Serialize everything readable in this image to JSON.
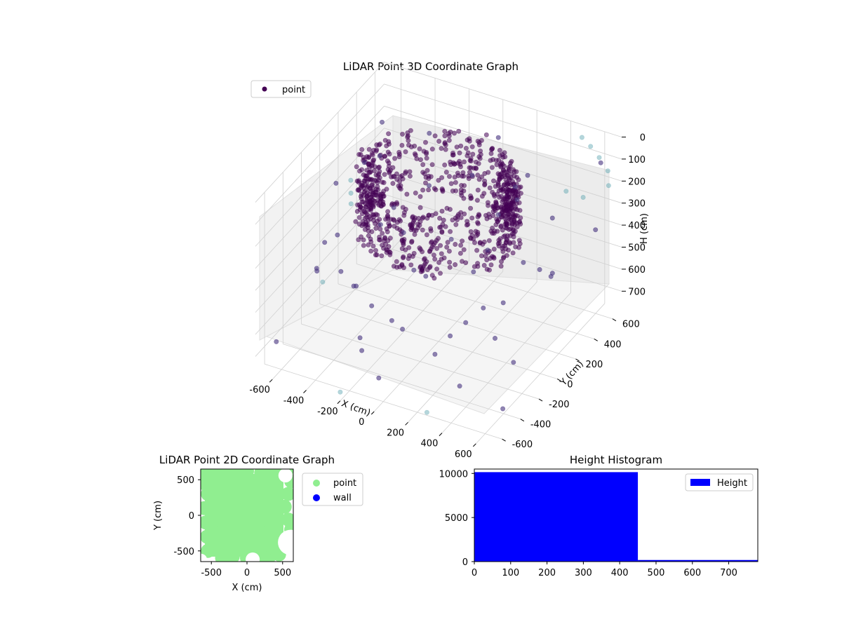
{
  "figure": {
    "background": "#ffffff"
  },
  "chart_data": [
    {
      "type": "scatter",
      "projection": "3d",
      "title": "LiDAR Point 3D Coordinate Graph",
      "xlabel": "X (cm)",
      "ylabel": "Y (cm)",
      "zlabel": "H (cm)",
      "xlim": [
        -700,
        700
      ],
      "ylim": [
        -700,
        700
      ],
      "zlim": [
        0,
        780
      ],
      "z_axis_inverted": true,
      "xticks": [
        -600,
        -400,
        -200,
        0,
        200,
        400,
        600
      ],
      "yticks": [
        -600,
        -400,
        -200,
        0,
        200,
        400,
        600
      ],
      "zticks": [
        0,
        100,
        200,
        300,
        400,
        500,
        600,
        700
      ],
      "grid": true,
      "legend": {
        "location": "upper-left",
        "entries": [
          "point"
        ]
      },
      "series": [
        {
          "name": "point",
          "colormap": "viridis",
          "color": "#440154",
          "ring": {
            "center_x": 0,
            "center_y": 0,
            "radius_x": 420,
            "radius_y": 380,
            "height_min": 0,
            "height_max": 300
          },
          "scattered_points": [
            [
              -650,
              560,
              350
            ],
            [
              -600,
              300,
              250
            ],
            [
              -550,
              -100,
              150
            ],
            [
              -500,
              -400,
              400
            ],
            [
              -450,
              200,
              450
            ],
            [
              -420,
              -550,
              300
            ],
            [
              -380,
              600,
              200
            ],
            [
              -350,
              -250,
              500
            ],
            [
              -300,
              450,
              350
            ],
            [
              -250,
              -600,
              250
            ],
            [
              -200,
              100,
              550
            ],
            [
              -150,
              -450,
              450
            ],
            [
              -100,
              550,
              300
            ],
            [
              -50,
              -300,
              600
            ],
            [
              0,
              650,
              150
            ],
            [
              50,
              -600,
              400
            ],
            [
              100,
              350,
              500
            ],
            [
              150,
              -150,
              650
            ],
            [
              200,
              600,
              250
            ],
            [
              250,
              -500,
              550
            ],
            [
              300,
              150,
              600
            ],
            [
              350,
              -350,
              450
            ],
            [
              400,
              500,
              350
            ],
            [
              450,
              -600,
              600
            ],
            [
              500,
              300,
              500
            ],
            [
              550,
              -200,
              650
            ],
            [
              600,
              600,
              400
            ],
            [
              650,
              -500,
              700
            ],
            [
              -620,
              -620,
              650
            ],
            [
              620,
              620,
              100
            ],
            [
              -600,
              620,
              600
            ],
            [
              600,
              -620,
              200
            ],
            [
              -500,
              0,
              650
            ],
            [
              500,
              0,
              300
            ],
            [
              0,
              -650,
              650
            ],
            [
              0,
              650,
              500
            ],
            [
              -300,
              -300,
              700
            ],
            [
              300,
              300,
              200
            ],
            [
              -450,
              450,
              600
            ],
            [
              450,
              -450,
              150
            ],
            [
              -650,
              100,
              500
            ],
            [
              650,
              -100,
              250
            ],
            [
              -100,
              -650,
              550
            ],
            [
              100,
              650,
              350
            ],
            [
              -550,
              400,
              100
            ],
            [
              550,
              -400,
              450
            ],
            [
              -400,
              -500,
              200
            ],
            [
              400,
              500,
              600
            ],
            [
              -250,
              600,
              650
            ],
            [
              250,
              -600,
              150
            ]
          ],
          "high_points": [
            [
              520,
              600,
              0
            ],
            [
              560,
              620,
              40
            ],
            [
              600,
              640,
              90
            ],
            [
              640,
              660,
              150
            ],
            [
              650,
              650,
              210
            ],
            [
              -680,
              300,
              350
            ],
            [
              -690,
              320,
              420
            ],
            [
              -700,
              340,
              480
            ],
            [
              -520,
              -300,
              500
            ],
            [
              300,
              -680,
              720
            ],
            [
              -200,
              -700,
              740
            ],
            [
              500,
              650,
              300
            ],
            [
              470,
              520,
              220
            ]
          ]
        }
      ]
    },
    {
      "type": "scatter",
      "title": "LiDAR Point 2D Coordinate Graph",
      "xlabel": "X (cm)",
      "ylabel": "Y (cm)",
      "xlim": [
        -650,
        650
      ],
      "ylim": [
        -650,
        650
      ],
      "xticks": [
        -500,
        0,
        500
      ],
      "yticks": [
        -500,
        0,
        500
      ],
      "legend": {
        "location": "outside-right",
        "entries": [
          "point",
          "wall"
        ]
      },
      "series": [
        {
          "name": "point",
          "color": "#90ee90",
          "points": [
            [
              -620,
              620
            ],
            [
              -600,
              450
            ],
            [
              -550,
              300
            ],
            [
              -600,
              100
            ],
            [
              -580,
              -100
            ],
            [
              -560,
              -300
            ],
            [
              -550,
              -500
            ],
            [
              -450,
              600
            ],
            [
              -300,
              580
            ],
            [
              -150,
              600
            ],
            [
              0,
              620
            ],
            [
              200,
              600
            ],
            [
              300,
              560
            ],
            [
              420,
              600
            ],
            [
              550,
              620
            ],
            [
              620,
              480
            ],
            [
              580,
              300
            ],
            [
              530,
              120
            ],
            [
              580,
              -60
            ],
            [
              620,
              -200
            ],
            [
              550,
              -400
            ],
            [
              450,
              -550
            ],
            [
              300,
              -600
            ],
            [
              150,
              -620
            ],
            [
              0,
              -600
            ],
            [
              -200,
              -580
            ],
            [
              -350,
              -600
            ],
            [
              -420,
              -420
            ],
            [
              -200,
              -300
            ],
            [
              0,
              -200
            ],
            [
              200,
              -250
            ],
            [
              350,
              -300
            ],
            [
              -300,
              -100
            ],
            [
              -100,
              0
            ],
            [
              100,
              100
            ],
            [
              300,
              0
            ],
            [
              -400,
              200
            ],
            [
              -200,
              300
            ],
            [
              0,
              400
            ],
            [
              200,
              350
            ],
            [
              400,
              250
            ],
            [
              -300,
              450
            ],
            [
              100,
              -400
            ],
            [
              -100,
              -450
            ],
            [
              350,
              -450
            ],
            [
              420,
              350
            ],
            [
              -500,
              500
            ],
            [
              -450,
              -250
            ]
          ]
        },
        {
          "name": "wall",
          "color": "#0000ff",
          "points": []
        }
      ]
    },
    {
      "type": "bar",
      "subtype": "histogram",
      "title": "Height Histogram",
      "xlim": [
        0,
        780
      ],
      "ylim": [
        0,
        10500
      ],
      "xticks": [
        0,
        100,
        200,
        300,
        400,
        500,
        600,
        700
      ],
      "yticks": [
        0,
        5000,
        10000
      ],
      "legend": {
        "location": "upper-right",
        "entries": [
          "Height"
        ]
      },
      "series": [
        {
          "name": "Height",
          "color": "#0000ff",
          "bins": [
            {
              "start": 0,
              "end": 450,
              "count": 10150
            },
            {
              "start": 450,
              "end": 780,
              "count": 180
            }
          ]
        }
      ]
    }
  ]
}
